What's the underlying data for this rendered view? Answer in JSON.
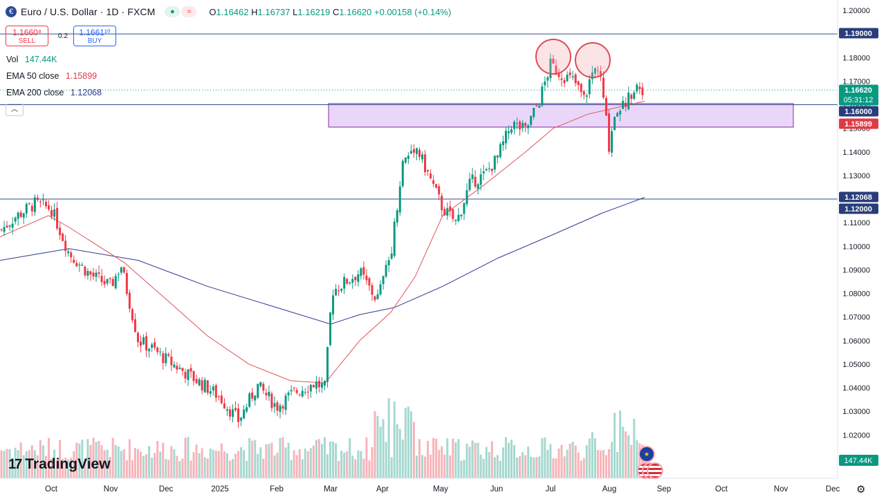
{
  "header": {
    "title": "Euro / U.S. Dollar · 1D · FXCM",
    "symbol_icon": "eu-flag-icon",
    "status_icons": [
      "market-open-dot-icon",
      "delayed-wave-icon"
    ],
    "ohlc": {
      "o_label": "O",
      "o": "1.16462",
      "h_label": "H",
      "h": "1.16737",
      "l_label": "L",
      "l": "1.16219",
      "c_label": "C",
      "c": "1.16620",
      "change": "+0.00158 (+0.14%)"
    }
  },
  "trade": {
    "sell_price": "1.1660⁸",
    "sell_label": "SELL",
    "spread": "0.2",
    "buy_price": "1.1661¹⁰",
    "buy_label": "BUY"
  },
  "indicators": {
    "vol_label": "Vol",
    "vol_value": "147.44K",
    "ema50_label": "EMA 50 close",
    "ema50_value": "1.15899",
    "ema200_label": "EMA 200 close",
    "ema200_value": "1.12068"
  },
  "colors": {
    "up": "#089981",
    "down": "#f23645",
    "ema50": "#e0525a",
    "ema200": "#2b3a8f",
    "hline": "#2a4f8f",
    "zone_fill": "#e3c8f5",
    "zone_border": "#8a2ba6",
    "label_blue": "#283e7a",
    "label_green": "#089981",
    "label_red": "#e03a46",
    "vol_up": "#a5d8d0",
    "vol_down": "#f7b4b9",
    "circle": "#e04a54"
  },
  "branding": {
    "logo_text": "TradingView",
    "logo_icon": "tradingview-logo-icon",
    "settings_icon": "gear-icon"
  },
  "chart_data": {
    "type": "candlestick",
    "title": "Euro / U.S. Dollar · 1D · FXCM",
    "y_axis_ticks": [
      "1.20000",
      "1.19000",
      "1.18000",
      "1.17000",
      "1.16000",
      "1.15000",
      "1.14000",
      "1.13000",
      "1.12000",
      "1.11000",
      "1.10000",
      "1.09000",
      "1.08000",
      "1.07000",
      "1.06000",
      "1.05000",
      "1.04000",
      "1.03000",
      "1.02000"
    ],
    "ylim": [
      1.0158,
      1.2015
    ],
    "x_axis_ticks": [
      "Oct",
      "Nov",
      "Dec",
      "2025",
      "Feb",
      "Mar",
      "Apr",
      "May",
      "Jun",
      "Jul",
      "Aug",
      "Sep",
      "Oct",
      "Nov",
      "Dec"
    ],
    "price_labels": [
      {
        "id": "h1190",
        "text": "1.19000",
        "value": 1.19,
        "style": "blue"
      },
      {
        "id": "last",
        "text": "1.16620",
        "countdown": "05:31:12",
        "value": 1.1662,
        "style": "green"
      },
      {
        "id": "h1160",
        "text": "1.16000",
        "value": 1.16,
        "style": "blue"
      },
      {
        "id": "ema50",
        "text": "1.15899",
        "value": 1.15899,
        "style": "red"
      },
      {
        "id": "ema200",
        "text": "1.12068",
        "value": 1.12068,
        "style": "blue"
      },
      {
        "id": "h1120",
        "text": "1.12000",
        "value": 1.12,
        "style": "blue"
      }
    ],
    "horizontal_lines": [
      1.19,
      1.16,
      1.12
    ],
    "resistance_zone": {
      "from": "Mar",
      "to": "Oct",
      "top": 1.1605,
      "bottom": 1.1505
    },
    "annotation_circles": [
      {
        "at": "early Jul",
        "price": 1.177
      },
      {
        "at": "late Jul",
        "price": 1.175
      }
    ],
    "volume_label": "147.44K",
    "close_path": [
      {
        "x": "Sep",
        "y": 1.11
      },
      {
        "x": "Sep",
        "y": 1.118
      },
      {
        "x": "Oct",
        "y": 1.116
      },
      {
        "x": "Oct",
        "y": 1.098
      },
      {
        "x": "Oct",
        "y": 1.088
      },
      {
        "x": "Nov",
        "y": 1.083
      },
      {
        "x": "Nov",
        "y": 1.091
      },
      {
        "x": "Nov",
        "y": 1.06
      },
      {
        "x": "Dec",
        "y": 1.052
      },
      {
        "x": "Dec",
        "y": 1.046
      },
      {
        "x": "Dec",
        "y": 1.04
      },
      {
        "x": "2025",
        "y": 1.035
      },
      {
        "x": "2025",
        "y": 1.024
      },
      {
        "x": "2025",
        "y": 1.041
      },
      {
        "x": "Feb",
        "y": 1.035
      },
      {
        "x": "Feb",
        "y": 1.032
      },
      {
        "x": "Feb",
        "y": 1.042
      },
      {
        "x": "Mar",
        "y": 1.04
      },
      {
        "x": "Mar",
        "y": 1.081
      },
      {
        "x": "Mar",
        "y": 1.087
      },
      {
        "x": "Apr",
        "y": 1.081
      },
      {
        "x": "Apr",
        "y": 1.097
      },
      {
        "x": "Apr",
        "y": 1.135
      },
      {
        "x": "Apr",
        "y": 1.14
      },
      {
        "x": "May",
        "y": 1.13
      },
      {
        "x": "May",
        "y": 1.114
      },
      {
        "x": "May",
        "y": 1.128
      },
      {
        "x": "Jun",
        "y": 1.137
      },
      {
        "x": "Jun",
        "y": 1.152
      },
      {
        "x": "Jun",
        "y": 1.149
      },
      {
        "x": "Jul",
        "y": 1.176
      },
      {
        "x": "Jul",
        "y": 1.173
      },
      {
        "x": "Jul",
        "y": 1.162
      },
      {
        "x": "Jul",
        "y": 1.175
      },
      {
        "x": "Aug",
        "y": 1.142
      },
      {
        "x": "Aug",
        "y": 1.16
      },
      {
        "x": "Aug",
        "y": 1.168
      },
      {
        "x": "Aug",
        "y": 1.1662
      }
    ]
  }
}
